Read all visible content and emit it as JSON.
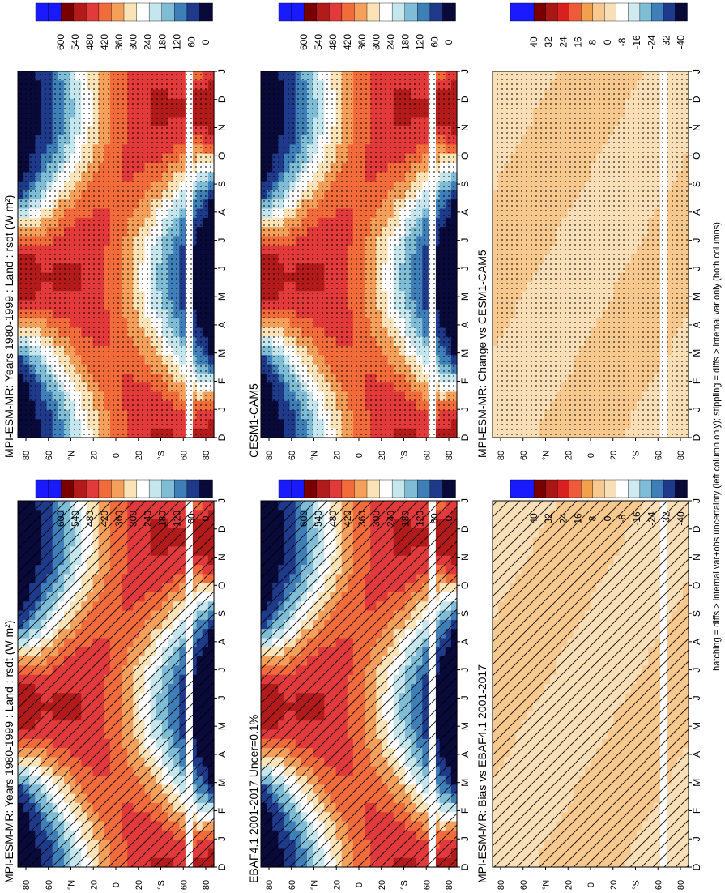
{
  "figure_caption": "hatching = diffs > internal var+obs uncertainty (left column only); stippling = diffs > internal var only (both columns)",
  "panel_titles": {
    "model_left": "MPI-ESM-MR: Years 1980-1999 : Land : rsdt (W m²)",
    "model_right": "MPI-ESM-MR: Years 1980-1999 : Land : rsdt (W m²)",
    "obs": "EBAF4.1 2001-2017 Uncer=0.1%",
    "ref_model": "CESM1-CAM5",
    "bias": "MPI-ESM-MR: Bias vs EBAF4.1 2001-2017",
    "change": "MPI-ESM-MR: Change vs CESM1-CAM5"
  },
  "chart_data": [
    {
      "type": "heatmap",
      "title": "MPI-ESM-MR: Years 1980-1999 : Land : rsdt (W m²)",
      "x_label": "",
      "y_label": "",
      "month_ticks": [
        "D",
        "J",
        "F",
        "M",
        "A",
        "M",
        "J",
        "J",
        "A",
        "S",
        "O",
        "N",
        "D",
        "J"
      ],
      "latitude_ticks": [
        "80",
        "60",
        "°N",
        "20",
        "0",
        "20",
        "°S",
        "60",
        "80"
      ],
      "colorbar_ticks": [
        "600",
        "540",
        "480",
        "420",
        "360",
        "300",
        "240",
        "180",
        "120",
        "60",
        "0"
      ],
      "range": [
        0,
        600
      ],
      "overlay": "hatching"
    },
    {
      "type": "heatmap",
      "title": "EBAF4.1 2001-2017 Uncer=0.1%",
      "month_ticks": [
        "D",
        "J",
        "F",
        "M",
        "A",
        "M",
        "J",
        "J",
        "A",
        "S",
        "O",
        "N",
        "D",
        "J"
      ],
      "latitude_ticks": [
        "80",
        "60",
        "°N",
        "20",
        "0",
        "20",
        "°S",
        "60",
        "80"
      ],
      "colorbar_ticks": [
        "600",
        "540",
        "480",
        "420",
        "360",
        "300",
        "240",
        "180",
        "120",
        "60",
        "0"
      ],
      "range": [
        0,
        600
      ],
      "overlay": "hatching"
    },
    {
      "type": "heatmap",
      "title": "MPI-ESM-MR: Bias vs EBAF4.1 2001-2017",
      "month_ticks": [
        "D",
        "J",
        "F",
        "M",
        "A",
        "M",
        "J",
        "J",
        "A",
        "S",
        "O",
        "N",
        "D",
        "J"
      ],
      "latitude_ticks": [
        "80",
        "60",
        "°N",
        "20",
        "0",
        "20",
        "°S",
        "60",
        "80"
      ],
      "colorbar_ticks": [
        "40",
        "32",
        "24",
        "16",
        "8",
        "0",
        "-8",
        "-16",
        "-24",
        "-32",
        "-40"
      ],
      "range": [
        -40,
        40
      ],
      "overlay": "hatching"
    },
    {
      "type": "heatmap",
      "title": "MPI-ESM-MR: Years 1980-1999 : Land : rsdt (W m²)",
      "month_ticks": [
        "D",
        "J",
        "F",
        "M",
        "A",
        "M",
        "J",
        "J",
        "A",
        "S",
        "O",
        "N",
        "D",
        "J"
      ],
      "latitude_ticks": [
        "80",
        "60",
        "°N",
        "20",
        "0",
        "20",
        "°S",
        "60",
        "80"
      ],
      "colorbar_ticks": [
        "600",
        "540",
        "480",
        "420",
        "360",
        "300",
        "240",
        "180",
        "120",
        "60",
        "0"
      ],
      "range": [
        0,
        600
      ],
      "overlay": "stippling"
    },
    {
      "type": "heatmap",
      "title": "CESM1-CAM5",
      "month_ticks": [
        "D",
        "J",
        "F",
        "M",
        "A",
        "M",
        "J",
        "J",
        "A",
        "S",
        "O",
        "N",
        "D",
        "J"
      ],
      "latitude_ticks": [
        "80",
        "60",
        "°N",
        "20",
        "0",
        "20",
        "°S",
        "60",
        "80"
      ],
      "colorbar_ticks": [
        "600",
        "540",
        "480",
        "420",
        "360",
        "300",
        "240",
        "180",
        "120",
        "60",
        "0"
      ],
      "range": [
        0,
        600
      ],
      "overlay": "stippling"
    },
    {
      "type": "heatmap",
      "title": "MPI-ESM-MR: Change vs CESM1-CAM5",
      "month_ticks": [
        "D",
        "J",
        "F",
        "M",
        "A",
        "M",
        "J",
        "J",
        "A",
        "S",
        "O",
        "N",
        "D",
        "J"
      ],
      "latitude_ticks": [
        "80",
        "60",
        "°N",
        "20",
        "0",
        "20",
        "°S",
        "60",
        "80"
      ],
      "colorbar_ticks": [
        "40",
        "32",
        "24",
        "16",
        "8",
        "0",
        "-8",
        "-16",
        "-24",
        "-32",
        "-40"
      ],
      "range": [
        -40,
        40
      ],
      "overlay": "stippling"
    }
  ],
  "colors": {
    "abs_scale": [
      "#1a1aff",
      "#1a1aff",
      "#7a0000",
      "#b31b1b",
      "#e23a3a",
      "#f26b3a",
      "#f5a05a",
      "#fbe3b8",
      "#ffffff",
      "#c6e6ee",
      "#7fbcd6",
      "#3f7fb8",
      "#1f3a8a",
      "#0a0a3a"
    ],
    "diff_scale": [
      "#1a1aff",
      "#1a1aff",
      "#7a0000",
      "#b31b1b",
      "#e23a3a",
      "#f26b3a",
      "#f5a05a",
      "#fbe3b8",
      "#ffffff",
      "#c6e6ee",
      "#7fbcd6",
      "#3f7fb8",
      "#1f3a8a",
      "#0a0a3a"
    ]
  }
}
